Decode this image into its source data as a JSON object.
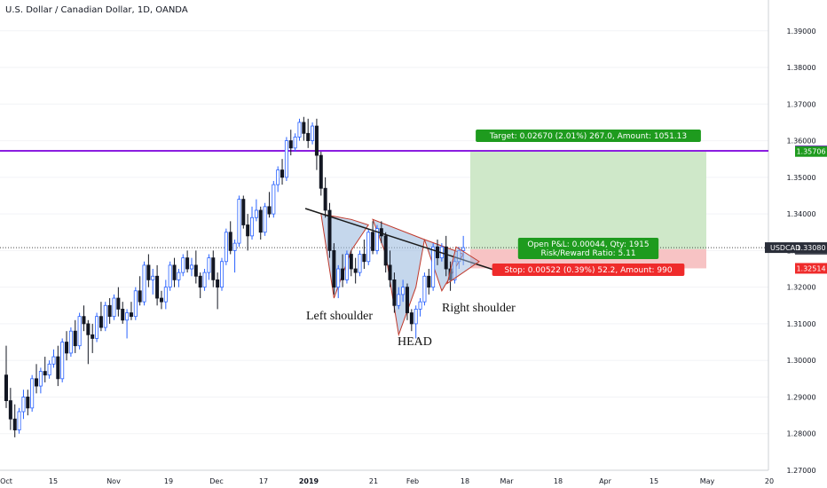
{
  "header": {
    "title": "U.S. Dollar / Canadian Dollar, 1D, OANDA"
  },
  "colors": {
    "up": "#ffffff",
    "down": "#131722",
    "outline": "#2962ff",
    "resistance": "#8b1ee0",
    "target_zone": "#cfe8c9",
    "stop_zone": "#f7c3c4",
    "label_green": "#1e9b1e",
    "label_red": "#ef2b2b",
    "label_dark": "#434651",
    "pattern_fill": "#9fbce0"
  },
  "chart_data": {
    "type": "candlestick",
    "symbol": "USDCAD",
    "ylim": [
      1.27,
      1.396
    ],
    "ytick_values": [
      1.27,
      1.28,
      1.29,
      1.3,
      1.31,
      1.32,
      1.33,
      1.34,
      1.35,
      1.36,
      1.37,
      1.38,
      1.39
    ],
    "ytick_labels": [
      "1.27000",
      "1.28000",
      "1.29000",
      "1.30000",
      "1.31000",
      "1.32000",
      "1.33000",
      "1.34000",
      "1.35000",
      "1.36000",
      "1.37000",
      "1.38000",
      "1.39000"
    ],
    "xtick_labels": [
      "Oct",
      "15",
      "Nov",
      "19",
      "Dec",
      "17",
      "2019",
      "21",
      "Feb",
      "18",
      "Mar",
      "18",
      "Apr",
      "15",
      "May",
      "20"
    ],
    "xtick_bold": "2019",
    "last_price": {
      "symbol": "USDCAD",
      "value": "1.33080",
      "level": 1.3308
    },
    "price_labels": [
      {
        "value": "1.35724",
        "level": 1.35724,
        "color": "#8b1ee0"
      },
      {
        "value": "1.35706",
        "level": 1.35706,
        "color": "#1e9b1e"
      },
      {
        "value": "1.33036",
        "level": 1.33036,
        "color": "#434651"
      },
      {
        "value": "1.32514",
        "level": 1.32514,
        "color": "#ef2b2b"
      }
    ],
    "resistance_level": 1.35724,
    "target_zone": {
      "top": 1.35706,
      "bottom": 1.33036
    },
    "stop_zone": {
      "top": 1.33036,
      "bottom": 1.32514
    },
    "labels": {
      "target": "Target: 0.02670 (2.01%) 267.0, Amount: 1051.13",
      "open_pl": "Open P&L: 0.00044, Qty: 1915",
      "risk_reward": "Risk/Reward Ratio: 5.11",
      "stop": "Stop: 0.00522 (0.39%) 52.2, Amount: 990"
    },
    "annotations": {
      "left_shoulder": "Left shoulder",
      "head": "HEAD",
      "right_shoulder": "Right shoulder"
    },
    "candles": [
      [
        1.296,
        1.304,
        1.287,
        1.289
      ],
      [
        1.289,
        1.2925,
        1.281,
        1.284
      ],
      [
        1.284,
        1.288,
        1.279,
        1.281
      ],
      [
        1.281,
        1.287,
        1.28,
        1.286
      ],
      [
        1.286,
        1.292,
        1.284,
        1.29
      ],
      [
        1.29,
        1.292,
        1.285,
        1.287
      ],
      [
        1.287,
        1.296,
        1.286,
        1.295
      ],
      [
        1.295,
        1.299,
        1.291,
        1.293
      ],
      [
        1.293,
        1.298,
        1.291,
        1.297
      ],
      [
        1.297,
        1.301,
        1.294,
        1.296
      ],
      [
        1.296,
        1.3,
        1.295,
        1.299
      ],
      [
        1.299,
        1.303,
        1.298,
        1.301
      ],
      [
        1.301,
        1.304,
        1.293,
        1.295
      ],
      [
        1.295,
        1.306,
        1.294,
        1.305
      ],
      [
        1.305,
        1.308,
        1.3,
        1.302
      ],
      [
        1.302,
        1.309,
        1.301,
        1.308
      ],
      [
        1.308,
        1.311,
        1.302,
        1.304
      ],
      [
        1.304,
        1.313,
        1.303,
        1.312
      ],
      [
        1.312,
        1.315,
        1.308,
        1.31
      ],
      [
        1.31,
        1.311,
        1.299,
        1.307
      ],
      [
        1.307,
        1.31,
        1.302,
        1.306
      ],
      [
        1.306,
        1.313,
        1.305,
        1.312
      ],
      [
        1.312,
        1.316,
        1.308,
        1.309
      ],
      [
        1.309,
        1.316,
        1.308,
        1.315
      ],
      [
        1.315,
        1.317,
        1.31,
        1.312
      ],
      [
        1.312,
        1.318,
        1.311,
        1.317
      ],
      [
        1.317,
        1.32,
        1.312,
        1.314
      ],
      [
        1.314,
        1.316,
        1.31,
        1.311
      ],
      [
        1.311,
        1.314,
        1.306,
        1.313
      ],
      [
        1.313,
        1.316,
        1.311,
        1.312
      ],
      [
        1.312,
        1.32,
        1.311,
        1.319
      ],
      [
        1.319,
        1.323,
        1.315,
        1.316
      ],
      [
        1.316,
        1.327,
        1.315,
        1.326
      ],
      [
        1.326,
        1.329,
        1.32,
        1.322
      ],
      [
        1.322,
        1.325,
        1.318,
        1.323
      ],
      [
        1.323,
        1.326,
        1.315,
        1.317
      ],
      [
        1.317,
        1.319,
        1.314,
        1.316
      ],
      [
        1.316,
        1.322,
        1.314,
        1.32
      ],
      [
        1.32,
        1.327,
        1.319,
        1.326
      ],
      [
        1.326,
        1.328,
        1.32,
        1.322
      ],
      [
        1.322,
        1.325,
        1.32,
        1.324
      ],
      [
        1.324,
        1.329,
        1.323,
        1.328
      ],
      [
        1.328,
        1.33,
        1.324,
        1.325
      ],
      [
        1.325,
        1.328,
        1.323,
        1.326
      ],
      [
        1.326,
        1.33,
        1.321,
        1.323
      ],
      [
        1.323,
        1.324,
        1.317,
        1.32
      ],
      [
        1.32,
        1.325,
        1.319,
        1.324
      ],
      [
        1.324,
        1.329,
        1.322,
        1.328
      ],
      [
        1.328,
        1.33,
        1.32,
        1.322
      ],
      [
        1.322,
        1.324,
        1.314,
        1.32
      ],
      [
        1.32,
        1.328,
        1.319,
        1.327
      ],
      [
        1.327,
        1.336,
        1.326,
        1.335
      ],
      [
        1.335,
        1.338,
        1.329,
        1.33
      ],
      [
        1.33,
        1.333,
        1.324,
        1.332
      ],
      [
        1.332,
        1.345,
        1.331,
        1.344
      ],
      [
        1.344,
        1.345,
        1.336,
        1.337
      ],
      [
        1.337,
        1.34,
        1.33,
        1.334
      ],
      [
        1.334,
        1.342,
        1.333,
        1.339
      ],
      [
        1.339,
        1.344,
        1.338,
        1.341
      ],
      [
        1.341,
        1.342,
        1.333,
        1.335
      ],
      [
        1.335,
        1.343,
        1.334,
        1.342
      ],
      [
        1.342,
        1.346,
        1.339,
        1.34
      ],
      [
        1.34,
        1.349,
        1.339,
        1.348
      ],
      [
        1.348,
        1.353,
        1.346,
        1.352
      ],
      [
        1.352,
        1.355,
        1.348,
        1.35
      ],
      [
        1.35,
        1.361,
        1.349,
        1.36
      ],
      [
        1.36,
        1.363,
        1.356,
        1.358
      ],
      [
        1.358,
        1.362,
        1.357,
        1.361
      ],
      [
        1.361,
        1.366,
        1.36,
        1.365
      ],
      [
        1.365,
        1.3665,
        1.36,
        1.362
      ],
      [
        1.362,
        1.366,
        1.358,
        1.36
      ],
      [
        1.36,
        1.365,
        1.359,
        1.364
      ],
      [
        1.364,
        1.366,
        1.352,
        1.356
      ],
      [
        1.356,
        1.357,
        1.345,
        1.347
      ],
      [
        1.347,
        1.35,
        1.339,
        1.341
      ],
      [
        1.341,
        1.343,
        1.328,
        1.33
      ],
      [
        1.33,
        1.332,
        1.318,
        1.32
      ],
      [
        1.32,
        1.326,
        1.317,
        1.325
      ],
      [
        1.325,
        1.329,
        1.32,
        1.322
      ],
      [
        1.322,
        1.33,
        1.321,
        1.329
      ],
      [
        1.329,
        1.33,
        1.323,
        1.325
      ],
      [
        1.325,
        1.328,
        1.321,
        1.324
      ],
      [
        1.324,
        1.33,
        1.323,
        1.329
      ],
      [
        1.329,
        1.333,
        1.325,
        1.327
      ],
      [
        1.327,
        1.336,
        1.326,
        1.335
      ],
      [
        1.335,
        1.338,
        1.329,
        1.33
      ],
      [
        1.33,
        1.337,
        1.329,
        1.336
      ],
      [
        1.336,
        1.338,
        1.332,
        1.334
      ],
      [
        1.334,
        1.335,
        1.324,
        1.326
      ],
      [
        1.326,
        1.33,
        1.32,
        1.322
      ],
      [
        1.322,
        1.324,
        1.313,
        1.315
      ],
      [
        1.315,
        1.32,
        1.314,
        1.318
      ],
      [
        1.318,
        1.322,
        1.316,
        1.32
      ],
      [
        1.32,
        1.321,
        1.311,
        1.313
      ],
      [
        1.313,
        1.314,
        1.308,
        1.31
      ],
      [
        1.31,
        1.315,
        1.306,
        1.314
      ],
      [
        1.314,
        1.317,
        1.312,
        1.316
      ],
      [
        1.316,
        1.324,
        1.315,
        1.323
      ],
      [
        1.323,
        1.325,
        1.318,
        1.32
      ],
      [
        1.32,
        1.332,
        1.319,
        1.331
      ],
      [
        1.331,
        1.333,
        1.326,
        1.328
      ],
      [
        1.328,
        1.332,
        1.327,
        1.331
      ],
      [
        1.331,
        1.334,
        1.323,
        1.325
      ],
      [
        1.325,
        1.327,
        1.319,
        1.322
      ],
      [
        1.322,
        1.328,
        1.321,
        1.327
      ],
      [
        1.327,
        1.331,
        1.325,
        1.33
      ],
      [
        1.33,
        1.334,
        1.326,
        1.3308
      ]
    ],
    "neckline": {
      "from": {
        "index": 71,
        "price": 1.341
      },
      "to": {
        "index": 113,
        "price": 1.325
      }
    },
    "pattern_regions": [
      {
        "name": "left-shoulder",
        "points": [
          [
            73,
            1.34
          ],
          [
            76,
            1.317
          ],
          [
            80,
            1.33
          ],
          [
            84,
            1.337
          ],
          [
            80,
            1.3385
          ]
        ]
      },
      {
        "name": "head",
        "points": [
          [
            85,
            1.3385
          ],
          [
            88,
            1.329
          ],
          [
            91,
            1.307
          ],
          [
            95,
            1.32
          ],
          [
            97,
            1.333
          ]
        ]
      },
      {
        "name": "right-shoulder",
        "points": [
          [
            97,
            1.333
          ],
          [
            101,
            1.319
          ],
          [
            106,
            1.329
          ],
          [
            104,
            1.33
          ]
        ]
      }
    ]
  }
}
